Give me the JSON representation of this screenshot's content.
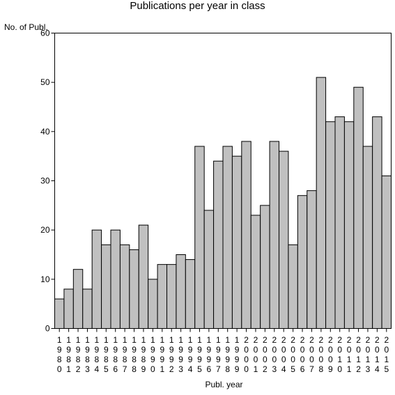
{
  "chart_data": {
    "type": "bar",
    "title": "Publications per year in class",
    "ylabel": "No. of Publ.",
    "xlabel": "Publ. year",
    "ylim": [
      0,
      60
    ],
    "yticks": [
      0,
      10,
      20,
      30,
      40,
      50,
      60
    ],
    "grid": false,
    "bar_color": "#c0c0c0",
    "categories": [
      "1980",
      "1981",
      "1982",
      "1983",
      "1984",
      "1985",
      "1986",
      "1987",
      "1988",
      "1989",
      "1990",
      "1991",
      "1992",
      "1993",
      "1994",
      "1995",
      "1996",
      "1997",
      "1998",
      "1999",
      "2000",
      "2001",
      "2002",
      "2003",
      "2004",
      "2005",
      "2006",
      "2007",
      "2008",
      "2009",
      "2010",
      "2011",
      "2012",
      "2013",
      "2014",
      "2015"
    ],
    "values": [
      6,
      8,
      12,
      8,
      20,
      17,
      20,
      17,
      16,
      21,
      10,
      13,
      13,
      15,
      14,
      37,
      24,
      34,
      37,
      35,
      38,
      23,
      25,
      38,
      36,
      17,
      27,
      28,
      51,
      42,
      43,
      42,
      49,
      37,
      43,
      31
    ]
  }
}
